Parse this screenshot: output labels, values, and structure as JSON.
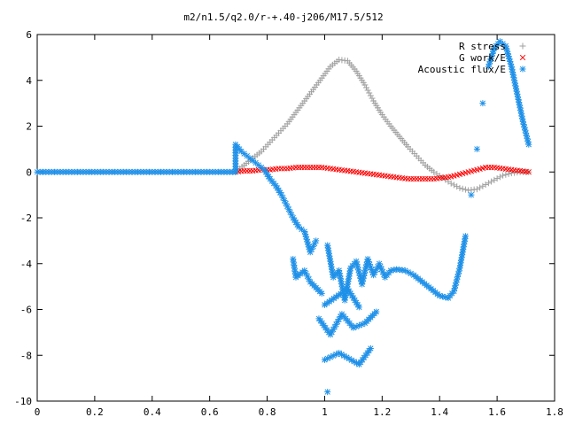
{
  "chart_data": {
    "type": "scatter",
    "title": "m2/n1.5/q2.0/r-+.40-j206/M17.5/512",
    "xlabel": "",
    "ylabel": "",
    "xlim": [
      0,
      1.8
    ],
    "ylim": [
      -10,
      6
    ],
    "grid": false,
    "legend_position": "top-right",
    "x_ticks": [
      "0",
      "0.2",
      "0.4",
      "0.6",
      "0.8",
      "1",
      "1.2",
      "1.4",
      "1.6",
      "1.8"
    ],
    "y_ticks": [
      "6",
      "4",
      "2",
      "0",
      "-2",
      "-4",
      "-6",
      "-8",
      "-10"
    ],
    "series": [
      {
        "name": "R stress",
        "marker": "plus",
        "color": "#a0a0a0",
        "points": [
          [
            0.69,
            0.0
          ],
          [
            0.72,
            0.3
          ],
          [
            0.75,
            0.6
          ],
          [
            0.78,
            0.9
          ],
          [
            0.81,
            1.3
          ],
          [
            0.84,
            1.7
          ],
          [
            0.87,
            2.1
          ],
          [
            0.9,
            2.6
          ],
          [
            0.93,
            3.1
          ],
          [
            0.96,
            3.6
          ],
          [
            0.99,
            4.1
          ],
          [
            1.02,
            4.6
          ],
          [
            1.05,
            4.9
          ],
          [
            1.08,
            4.85
          ],
          [
            1.11,
            4.4
          ],
          [
            1.14,
            3.8
          ],
          [
            1.17,
            3.1
          ],
          [
            1.2,
            2.5
          ],
          [
            1.23,
            2.0
          ],
          [
            1.26,
            1.55
          ],
          [
            1.29,
            1.1
          ],
          [
            1.32,
            0.7
          ],
          [
            1.35,
            0.3
          ],
          [
            1.38,
            0.0
          ],
          [
            1.41,
            -0.25
          ],
          [
            1.44,
            -0.5
          ],
          [
            1.47,
            -0.7
          ],
          [
            1.5,
            -0.8
          ],
          [
            1.53,
            -0.75
          ],
          [
            1.56,
            -0.55
          ],
          [
            1.59,
            -0.35
          ],
          [
            1.62,
            -0.15
          ],
          [
            1.65,
            -0.05
          ],
          [
            1.68,
            0.0
          ],
          [
            1.71,
            0.0
          ]
        ]
      },
      {
        "name": "G work/E",
        "marker": "cross",
        "color": "#ff0000",
        "points": [
          [
            0.69,
            0.0
          ],
          [
            0.72,
            0.05
          ],
          [
            0.75,
            0.05
          ],
          [
            0.78,
            0.1
          ],
          [
            0.81,
            0.1
          ],
          [
            0.84,
            0.15
          ],
          [
            0.87,
            0.15
          ],
          [
            0.9,
            0.2
          ],
          [
            0.93,
            0.2
          ],
          [
            0.96,
            0.2
          ],
          [
            0.99,
            0.2
          ],
          [
            1.02,
            0.15
          ],
          [
            1.05,
            0.1
          ],
          [
            1.08,
            0.05
          ],
          [
            1.11,
            0.0
          ],
          [
            1.14,
            -0.05
          ],
          [
            1.17,
            -0.1
          ],
          [
            1.2,
            -0.15
          ],
          [
            1.23,
            -0.2
          ],
          [
            1.26,
            -0.25
          ],
          [
            1.29,
            -0.3
          ],
          [
            1.32,
            -0.3
          ],
          [
            1.35,
            -0.3
          ],
          [
            1.38,
            -0.3
          ],
          [
            1.41,
            -0.25
          ],
          [
            1.44,
            -0.2
          ],
          [
            1.47,
            -0.1
          ],
          [
            1.5,
            0.0
          ],
          [
            1.53,
            0.1
          ],
          [
            1.56,
            0.2
          ],
          [
            1.59,
            0.2
          ],
          [
            1.62,
            0.15
          ],
          [
            1.65,
            0.1
          ],
          [
            1.68,
            0.05
          ],
          [
            1.71,
            0.0
          ]
        ]
      },
      {
        "name": "Acoustic flux/E",
        "marker": "star",
        "color": "#1e90e8",
        "points": [
          [
            0.0,
            0.0
          ],
          [
            0.05,
            0.0
          ],
          [
            0.1,
            0.0
          ],
          [
            0.15,
            0.0
          ],
          [
            0.2,
            0.0
          ],
          [
            0.25,
            0.0
          ],
          [
            0.3,
            0.0
          ],
          [
            0.35,
            0.0
          ],
          [
            0.4,
            0.0
          ],
          [
            0.45,
            0.0
          ],
          [
            0.5,
            0.0
          ],
          [
            0.55,
            0.0
          ],
          [
            0.6,
            0.0
          ],
          [
            0.65,
            0.0
          ],
          [
            0.69,
            0.0
          ],
          [
            0.69,
            1.2
          ],
          [
            0.71,
            0.9
          ],
          [
            0.73,
            0.7
          ],
          [
            0.75,
            0.5
          ],
          [
            0.77,
            0.3
          ],
          [
            0.79,
            0.1
          ],
          [
            0.81,
            -0.3
          ],
          [
            0.83,
            -0.6
          ],
          [
            0.85,
            -1.0
          ],
          [
            0.87,
            -1.5
          ],
          [
            0.89,
            -2.0
          ],
          [
            0.91,
            -2.4
          ],
          [
            0.93,
            -2.6
          ],
          [
            0.95,
            -3.5
          ],
          [
            0.97,
            -3.0
          ],
          [
            0.89,
            -3.8
          ],
          [
            0.9,
            -4.6
          ],
          [
            0.93,
            -4.3
          ],
          [
            0.95,
            -4.8
          ],
          [
            0.99,
            -5.3
          ],
          [
            1.01,
            -3.2
          ],
          [
            1.03,
            -4.6
          ],
          [
            1.05,
            -4.3
          ],
          [
            1.07,
            -5.6
          ],
          [
            1.09,
            -4.2
          ],
          [
            1.11,
            -3.9
          ],
          [
            1.13,
            -4.9
          ],
          [
            1.15,
            -3.8
          ],
          [
            1.17,
            -4.5
          ],
          [
            1.19,
            -4.0
          ],
          [
            1.21,
            -4.6
          ],
          [
            1.23,
            -4.3
          ],
          [
            1.25,
            -4.25
          ],
          [
            1.28,
            -4.3
          ],
          [
            1.31,
            -4.5
          ],
          [
            1.34,
            -4.8
          ],
          [
            1.37,
            -5.1
          ],
          [
            1.4,
            -5.4
          ],
          [
            1.43,
            -5.5
          ],
          [
            1.45,
            -5.2
          ],
          [
            1.47,
            -4.2
          ],
          [
            1.49,
            -2.8
          ],
          [
            1.51,
            -1.0
          ],
          [
            1.53,
            1.0
          ],
          [
            1.55,
            3.0
          ],
          [
            1.57,
            4.6
          ],
          [
            1.59,
            5.4
          ],
          [
            1.61,
            5.7
          ],
          [
            1.63,
            5.5
          ],
          [
            1.65,
            4.6
          ],
          [
            1.67,
            3.4
          ],
          [
            1.69,
            2.2
          ],
          [
            1.71,
            1.2
          ],
          [
            0.98,
            -6.4
          ],
          [
            1.02,
            -7.1
          ],
          [
            1.06,
            -6.2
          ],
          [
            1.1,
            -6.8
          ],
          [
            1.14,
            -6.6
          ],
          [
            1.18,
            -6.1
          ],
          [
            1.0,
            -8.2
          ],
          [
            1.05,
            -7.9
          ],
          [
            1.12,
            -8.4
          ],
          [
            1.16,
            -7.7
          ],
          [
            1.01,
            -9.6
          ],
          [
            1.0,
            -5.8
          ],
          [
            1.08,
            -5.1
          ],
          [
            1.12,
            -5.9
          ]
        ]
      }
    ]
  }
}
